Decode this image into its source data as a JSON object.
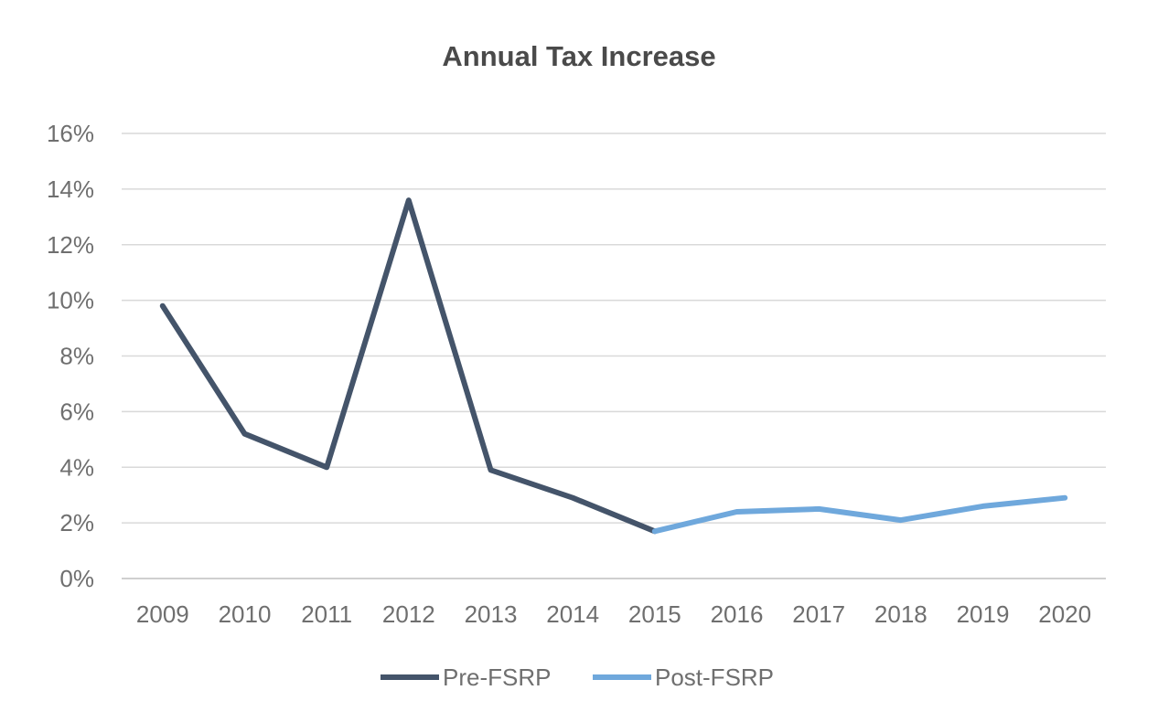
{
  "chart_data": {
    "type": "line",
    "title": "Annual Tax Increase",
    "xlabel": "",
    "ylabel": "",
    "categories": [
      "2009",
      "2010",
      "2011",
      "2012",
      "2013",
      "2014",
      "2015",
      "2016",
      "2017",
      "2018",
      "2019",
      "2020"
    ],
    "ylim": [
      0,
      16
    ],
    "yticks": [
      0,
      2,
      4,
      6,
      8,
      10,
      12,
      14,
      16
    ],
    "ytick_labels": [
      "0%",
      "2%",
      "4%",
      "6%",
      "8%",
      "10%",
      "12%",
      "14%",
      "16%"
    ],
    "grid": true,
    "legend_position": "bottom",
    "series": [
      {
        "name": "Pre-FSRP",
        "color": "#44546a",
        "values": [
          9.8,
          5.2,
          4.0,
          13.6,
          3.9,
          2.9,
          1.7,
          null,
          null,
          null,
          null,
          null
        ]
      },
      {
        "name": "Post-FSRP",
        "color": "#6fa8dc",
        "values": [
          null,
          null,
          null,
          null,
          null,
          null,
          1.7,
          2.4,
          2.5,
          2.1,
          2.6,
          2.9
        ]
      }
    ]
  }
}
